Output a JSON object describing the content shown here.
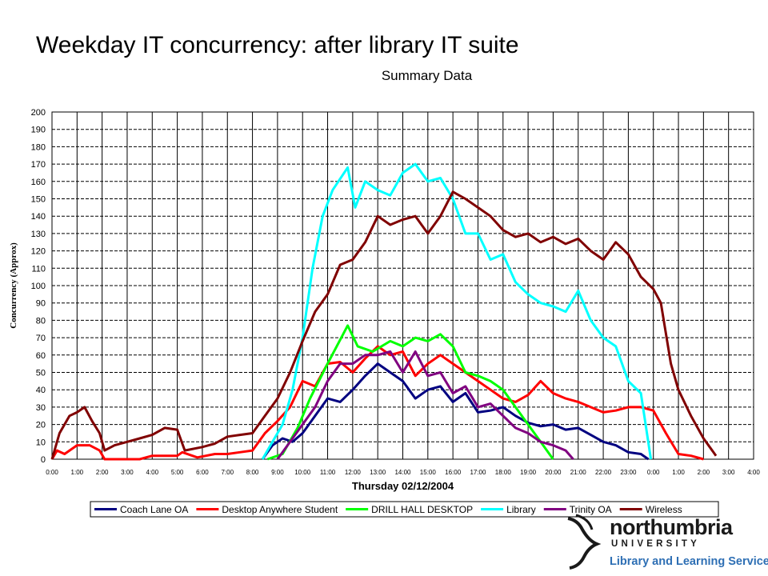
{
  "slide_title": "Weekday IT concurrency: after library IT suite",
  "logo": {
    "wordmark": "northumbria",
    "subtext": "UNIVERSITY",
    "tagline": "Library and Learning Services"
  },
  "chart_data": {
    "type": "line",
    "title": "Summary Data",
    "xlabel": "Thursday 02/12/2004",
    "ylabel": "Concurrency (Approx)",
    "ylim": [
      0,
      200
    ],
    "yticks": [
      0,
      10,
      20,
      30,
      40,
      50,
      60,
      70,
      80,
      90,
      100,
      110,
      120,
      130,
      140,
      150,
      160,
      170,
      180,
      190,
      200
    ],
    "xlim": [
      0,
      28
    ],
    "xtick_labels": [
      "0:00",
      "1:00",
      "2:00",
      "3:00",
      "4:00",
      "5:00",
      "6:00",
      "7:00",
      "8:00",
      "9:00",
      "10:00",
      "11:00",
      "12:00",
      "13:00",
      "14:00",
      "15:00",
      "16:00",
      "17:00",
      "18:00",
      "19:00",
      "20:00",
      "21:00",
      "22:00",
      "23:00",
      "0:00",
      "1:00",
      "2:00",
      "3:00",
      "4:00"
    ],
    "grid": true,
    "legend_position": "bottom",
    "series": [
      {
        "name": "Coach Lane OA",
        "color": "#000080",
        "x": [
          8.4,
          8.8,
          9.2,
          9.6,
          10,
          10.5,
          11,
          11.5,
          12,
          12.5,
          13,
          13.5,
          14,
          14.5,
          15,
          15.5,
          16,
          16.5,
          17,
          17.5,
          18,
          18.5,
          19,
          19.5,
          20,
          20.5,
          21,
          21.5,
          22,
          22.5,
          23,
          23.5,
          23.8
        ],
        "y": [
          0,
          8,
          12,
          10,
          15,
          25,
          35,
          33,
          40,
          48,
          55,
          50,
          45,
          35,
          40,
          42,
          33,
          38,
          27,
          28,
          30,
          25,
          21,
          19,
          20,
          17,
          18,
          14,
          10,
          8,
          4,
          3,
          0
        ]
      },
      {
        "name": "Desktop Anywhere Student",
        "color": "#ff0000",
        "x": [
          0,
          0.2,
          0.5,
          1,
          1.5,
          1.9,
          2.1,
          3.5,
          4,
          4.5,
          5,
          5.2,
          5.8,
          6.5,
          7,
          7.5,
          8,
          8.5,
          9,
          9.5,
          10,
          10.5,
          11,
          11.5,
          12,
          12.5,
          13,
          13.5,
          14,
          14.5,
          15,
          15.5,
          16,
          16.5,
          17,
          17.5,
          18,
          18.5,
          19,
          19.5,
          20,
          20.5,
          21,
          21.5,
          22,
          22.5,
          23,
          23.5,
          24,
          24.5,
          25,
          25.5,
          26
        ],
        "y": [
          0,
          5,
          3,
          8,
          8,
          5,
          0,
          0,
          2,
          2,
          2,
          4,
          1,
          3,
          3,
          4,
          5,
          15,
          22,
          30,
          45,
          42,
          55,
          56,
          50,
          58,
          65,
          60,
          62,
          48,
          55,
          60,
          55,
          50,
          45,
          40,
          35,
          33,
          37,
          45,
          38,
          35,
          33,
          30,
          27,
          28,
          30,
          30,
          28,
          15,
          3,
          2,
          0
        ]
      },
      {
        "name": "DRILL HALL DESKTOP",
        "color": "#00ff00",
        "x": [
          8.6,
          9.2,
          9.8,
          10.3,
          11,
          11.8,
          12.2,
          12.8,
          13.5,
          14,
          14.5,
          15,
          15.5,
          16,
          16.5,
          17,
          17.5,
          18,
          18.5,
          19,
          19.5,
          20
        ],
        "y": [
          0,
          3,
          18,
          35,
          55,
          77,
          65,
          62,
          68,
          65,
          70,
          68,
          72,
          65,
          50,
          48,
          45,
          40,
          30,
          20,
          10,
          0
        ]
      },
      {
        "name": "Library",
        "color": "#00ffff",
        "x": [
          8.4,
          8.8,
          9.2,
          9.6,
          10,
          10.4,
          10.8,
          11.2,
          11.8,
          12.1,
          12.5,
          13,
          13.5,
          14,
          14.5,
          15,
          15.5,
          16,
          16.5,
          17,
          17.5,
          18,
          18.5,
          19,
          19.5,
          20,
          20.5,
          21,
          21.5,
          22,
          22.5,
          23,
          23.5,
          23.9
        ],
        "y": [
          0,
          10,
          20,
          40,
          70,
          110,
          140,
          155,
          168,
          145,
          160,
          155,
          152,
          165,
          170,
          160,
          162,
          150,
          130,
          130,
          115,
          118,
          102,
          95,
          90,
          88,
          85,
          97,
          80,
          70,
          65,
          45,
          38,
          0
        ]
      },
      {
        "name": "Trinity OA",
        "color": "#800080",
        "x": [
          9,
          9.5,
          10,
          10.5,
          11,
          11.5,
          12,
          12.5,
          13,
          13.5,
          14,
          14.5,
          15,
          15.5,
          16,
          16.5,
          17,
          17.5,
          18,
          18.5,
          19,
          19.5,
          20,
          20.5,
          20.8
        ],
        "y": [
          0,
          10,
          20,
          30,
          45,
          55,
          55,
          60,
          60,
          62,
          50,
          62,
          48,
          50,
          38,
          42,
          30,
          32,
          25,
          18,
          15,
          10,
          8,
          5,
          0
        ]
      },
      {
        "name": "Wireless",
        "color": "#800000",
        "x": [
          0,
          0.3,
          0.7,
          1,
          1.3,
          1.6,
          1.9,
          2.1,
          2.5,
          3,
          3.5,
          4,
          4.5,
          5,
          5.3,
          6,
          6.5,
          7,
          7.5,
          8,
          8.5,
          9,
          9.5,
          10,
          10.5,
          11,
          11.5,
          12,
          12.5,
          13,
          13.5,
          14,
          14.5,
          15,
          15.5,
          16,
          16.5,
          17,
          17.5,
          18,
          18.5,
          19,
          19.5,
          20,
          20.5,
          21,
          21.5,
          22,
          22.5,
          23,
          23.5,
          24,
          24.3,
          24.7,
          25,
          25.5,
          26,
          26.5
        ],
        "y": [
          0,
          15,
          25,
          27,
          30,
          22,
          15,
          5,
          8,
          10,
          12,
          14,
          18,
          17,
          5,
          7,
          9,
          13,
          14,
          15,
          25,
          35,
          50,
          68,
          85,
          95,
          112,
          115,
          125,
          140,
          135,
          138,
          140,
          130,
          140,
          154,
          150,
          145,
          140,
          132,
          128,
          130,
          125,
          128,
          124,
          127,
          120,
          115,
          125,
          118,
          105,
          98,
          90,
          55,
          40,
          25,
          12,
          2
        ]
      }
    ]
  }
}
